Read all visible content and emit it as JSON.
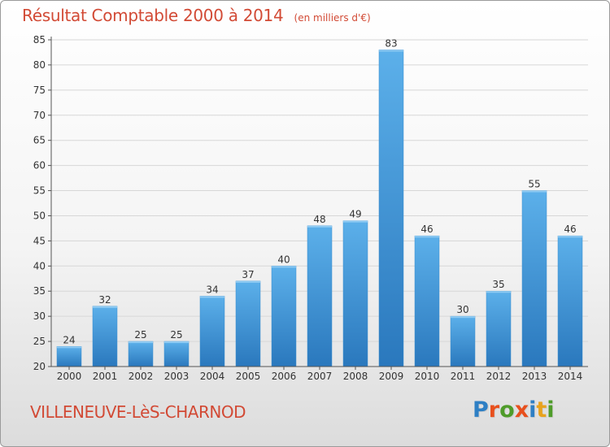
{
  "header": {
    "title": "Résultat Comptable 2000 à 2014",
    "unit_note": "(en milliers d'€)"
  },
  "footer": {
    "commune": "VILLENEUVE-LèS-CHARNOD",
    "logo_text": "Proxiti",
    "logo_letter_colors": [
      "#2e7fc4",
      "#e8501d",
      "#4f9c2a",
      "#e8501d",
      "#2e7fc4",
      "#e8a31d",
      "#4f9c2a"
    ]
  },
  "colors": {
    "title": "#d24a35",
    "bar_top": "#5cb0ea",
    "bar_bottom": "#2a78bd",
    "grid": "#d7d7d7",
    "axis": "#555555"
  },
  "chart_data": {
    "type": "bar",
    "categories": [
      "2000",
      "2001",
      "2002",
      "2003",
      "2004",
      "2005",
      "2006",
      "2007",
      "2008",
      "2009",
      "2010",
      "2011",
      "2012",
      "2013",
      "2014"
    ],
    "values": [
      24,
      32,
      25,
      25,
      34,
      37,
      40,
      48,
      49,
      83,
      46,
      30,
      35,
      55,
      46
    ],
    "title": "Résultat Comptable 2000 à 2014",
    "subtitle": "(en milliers d'€)",
    "ylim": [
      20,
      85
    ],
    "yticks": [
      20,
      25,
      30,
      35,
      40,
      45,
      50,
      55,
      60,
      65,
      70,
      75,
      80,
      85
    ],
    "grid": true,
    "legend": "none"
  }
}
